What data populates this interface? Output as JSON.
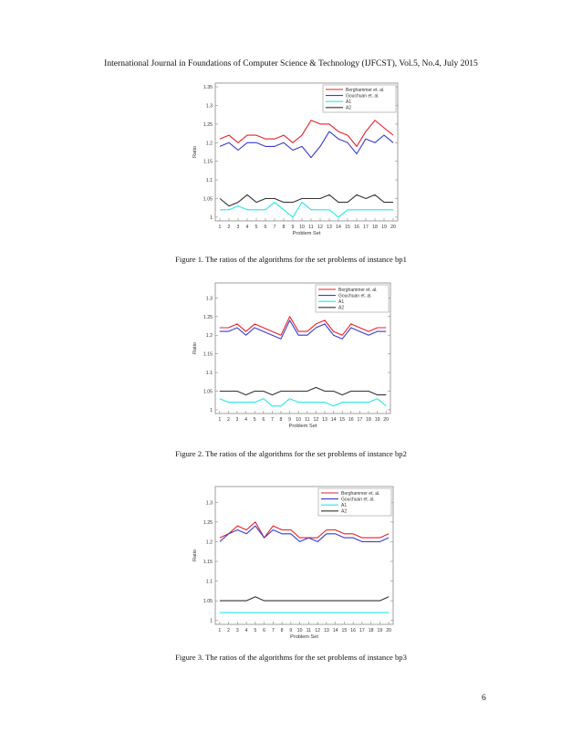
{
  "header": "International Journal in Foundations of Computer Science & Technology (IJFCST), Vol.5, No.4, July 2015",
  "page_number": "6",
  "figures": [
    {
      "caption": "Figure 1.  The ratios of the algorithms for the set problems of instance bp1"
    },
    {
      "caption": "Figure 2.  The ratios of the algorithms for the set problems of instance bp2"
    },
    {
      "caption": "Figure 3.  The ratios of the algorithms for the set problems of instance bp3"
    }
  ],
  "chart_data": [
    {
      "type": "line",
      "xlabel": "Problem Set",
      "ylabel": "Ratio",
      "x": [
        1,
        2,
        3,
        4,
        5,
        6,
        7,
        8,
        9,
        10,
        11,
        12,
        13,
        14,
        15,
        16,
        17,
        18,
        19,
        20
      ],
      "xlim": [
        0.5,
        20.5
      ],
      "ylim": [
        0.99,
        1.36
      ],
      "yticks": [
        1,
        1.05,
        1.1,
        1.15,
        1.2,
        1.25,
        1.3,
        1.35
      ],
      "grid": false,
      "legend_position": "top-right",
      "series": [
        {
          "name": "Berghammer et. al.",
          "color": "#e8202a",
          "values": [
            1.21,
            1.22,
            1.2,
            1.22,
            1.22,
            1.21,
            1.21,
            1.22,
            1.2,
            1.22,
            1.26,
            1.25,
            1.25,
            1.23,
            1.22,
            1.19,
            1.23,
            1.26,
            1.24,
            1.22
          ]
        },
        {
          "name": "Gouchuan et. al.",
          "color": "#3a3ad0",
          "values": [
            1.19,
            1.2,
            1.18,
            1.2,
            1.2,
            1.19,
            1.19,
            1.2,
            1.18,
            1.19,
            1.16,
            1.19,
            1.23,
            1.21,
            1.2,
            1.17,
            1.21,
            1.2,
            1.22,
            1.2
          ]
        },
        {
          "name": "A1",
          "color": "#22e8ec",
          "values": [
            1.02,
            1.02,
            1.03,
            1.02,
            1.02,
            1.02,
            1.04,
            1.02,
            1.0,
            1.04,
            1.02,
            1.02,
            1.02,
            1.0,
            1.02,
            1.02,
            1.02,
            1.02,
            1.02,
            1.02
          ]
        },
        {
          "name": "A2",
          "color": "#333333",
          "values": [
            1.05,
            1.03,
            1.04,
            1.06,
            1.04,
            1.05,
            1.05,
            1.04,
            1.04,
            1.05,
            1.05,
            1.05,
            1.06,
            1.04,
            1.04,
            1.06,
            1.05,
            1.06,
            1.04,
            1.04
          ]
        }
      ]
    },
    {
      "type": "line",
      "xlabel": "Problem Set",
      "ylabel": "Ratio",
      "x": [
        1,
        2,
        3,
        4,
        5,
        6,
        7,
        8,
        9,
        10,
        11,
        12,
        13,
        14,
        15,
        16,
        17,
        18,
        19,
        20
      ],
      "xlim": [
        0.5,
        20.5
      ],
      "ylim": [
        0.99,
        1.34
      ],
      "yticks": [
        1,
        1.05,
        1.1,
        1.15,
        1.2,
        1.25,
        1.3
      ],
      "grid": false,
      "legend_position": "top-right",
      "series": [
        {
          "name": "Berghammer et. al.",
          "color": "#e8202a",
          "values": [
            1.22,
            1.22,
            1.23,
            1.21,
            1.23,
            1.22,
            1.21,
            1.2,
            1.25,
            1.21,
            1.21,
            1.23,
            1.24,
            1.21,
            1.2,
            1.23,
            1.22,
            1.21,
            1.22,
            1.22
          ]
        },
        {
          "name": "Gouchuan et. al.",
          "color": "#3a3ad0",
          "values": [
            1.21,
            1.21,
            1.22,
            1.2,
            1.22,
            1.21,
            1.2,
            1.19,
            1.24,
            1.2,
            1.2,
            1.22,
            1.23,
            1.2,
            1.19,
            1.22,
            1.21,
            1.2,
            1.21,
            1.21
          ]
        },
        {
          "name": "A1",
          "color": "#22e8ec",
          "values": [
            1.03,
            1.02,
            1.02,
            1.02,
            1.02,
            1.03,
            1.01,
            1.01,
            1.03,
            1.02,
            1.02,
            1.02,
            1.02,
            1.01,
            1.02,
            1.02,
            1.02,
            1.02,
            1.03,
            1.01
          ]
        },
        {
          "name": "A2",
          "color": "#333333",
          "values": [
            1.05,
            1.05,
            1.05,
            1.04,
            1.05,
            1.05,
            1.04,
            1.05,
            1.05,
            1.05,
            1.05,
            1.06,
            1.05,
            1.05,
            1.04,
            1.05,
            1.05,
            1.05,
            1.04,
            1.04
          ]
        }
      ]
    },
    {
      "type": "line",
      "xlabel": "Problem Set",
      "ylabel": "Ratio",
      "x": [
        1,
        2,
        3,
        4,
        5,
        6,
        7,
        8,
        9,
        10,
        11,
        12,
        13,
        14,
        15,
        16,
        17,
        18,
        19,
        20
      ],
      "xlim": [
        0.5,
        20.5
      ],
      "ylim": [
        0.99,
        1.34
      ],
      "yticks": [
        1,
        1.05,
        1.1,
        1.15,
        1.2,
        1.25,
        1.3
      ],
      "grid": false,
      "legend_position": "top-right",
      "series": [
        {
          "name": "Berghammer et. al.",
          "color": "#e8202a",
          "values": [
            1.21,
            1.22,
            1.24,
            1.23,
            1.25,
            1.21,
            1.24,
            1.23,
            1.23,
            1.21,
            1.21,
            1.21,
            1.23,
            1.23,
            1.22,
            1.22,
            1.21,
            1.21,
            1.21,
            1.22
          ]
        },
        {
          "name": "Gouchuan et. al.",
          "color": "#3a3ad0",
          "values": [
            1.2,
            1.22,
            1.23,
            1.22,
            1.24,
            1.21,
            1.23,
            1.22,
            1.22,
            1.2,
            1.21,
            1.2,
            1.22,
            1.22,
            1.21,
            1.21,
            1.2,
            1.2,
            1.2,
            1.21
          ]
        },
        {
          "name": "A1",
          "color": "#22e8ec",
          "values": [
            1.02,
            1.02,
            1.02,
            1.02,
            1.02,
            1.02,
            1.02,
            1.02,
            1.02,
            1.02,
            1.02,
            1.02,
            1.02,
            1.02,
            1.02,
            1.02,
            1.02,
            1.02,
            1.02,
            1.02
          ]
        },
        {
          "name": "A2",
          "color": "#333333",
          "values": [
            1.05,
            1.05,
            1.05,
            1.05,
            1.06,
            1.05,
            1.05,
            1.05,
            1.05,
            1.05,
            1.05,
            1.05,
            1.05,
            1.05,
            1.05,
            1.05,
            1.05,
            1.05,
            1.05,
            1.06
          ]
        }
      ]
    }
  ]
}
